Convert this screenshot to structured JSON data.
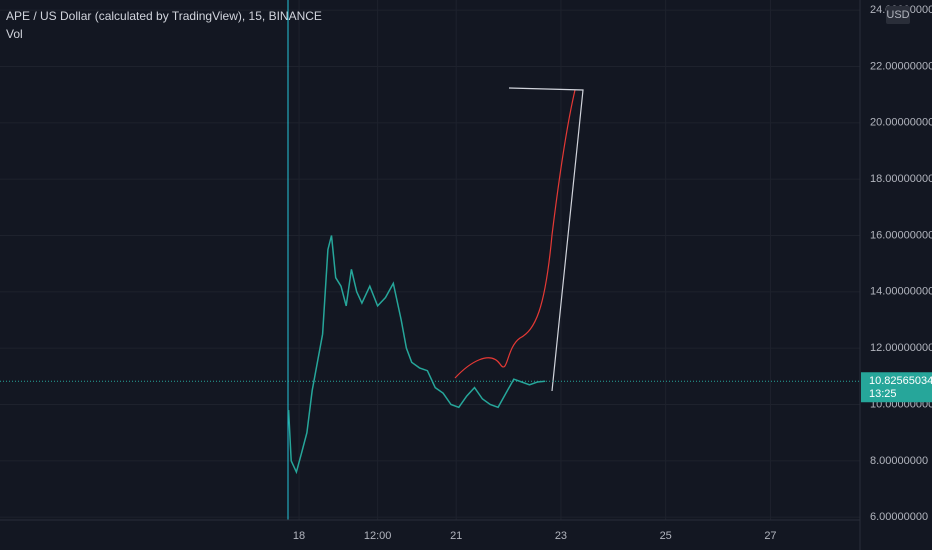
{
  "chart_data": {
    "type": "line",
    "title": "APE / US Dollar (calculated by TradingView), 15, BINANCE",
    "volume_label": "Vol",
    "currency": "USD",
    "x": [
      17.8,
      17.85,
      17.95,
      18.05,
      18.15,
      18.25,
      18.35,
      18.45,
      18.55,
      18.62,
      18.7,
      18.8,
      18.9,
      19.0,
      19.1,
      19.2,
      19.35,
      19.5,
      19.65,
      19.8,
      19.95,
      20.05,
      20.15,
      20.3,
      20.45,
      20.6,
      20.75,
      20.9,
      21.05,
      21.2,
      21.35,
      21.5,
      21.65,
      21.8,
      21.95,
      22.1,
      22.25,
      22.4,
      22.55,
      22.7
    ],
    "series": [
      {
        "name": "APE / US Dollar",
        "color": "#26a69a",
        "values": [
          9.8,
          8.0,
          7.6,
          8.3,
          9.0,
          10.5,
          11.5,
          12.5,
          15.5,
          16.0,
          14.5,
          14.2,
          13.5,
          14.8,
          14.0,
          13.6,
          14.2,
          13.5,
          13.8,
          14.3,
          13.0,
          12.0,
          11.5,
          11.3,
          11.2,
          10.6,
          10.4,
          10.0,
          9.9,
          10.3,
          10.6,
          10.2,
          10.0,
          9.9,
          10.4,
          10.9,
          10.8,
          10.7,
          10.8,
          10.82565034
        ]
      }
    ],
    "last_price": 10.82565034,
    "countdown": "13:25",
    "xlim": [
      12.29,
      28.71
    ],
    "xticks": [
      18,
      {
        "value": 19.5,
        "label": "12:00"
      },
      21,
      23,
      25,
      27
    ],
    "ylim": [
      5.9,
      24.36
    ],
    "yticks": [
      {
        "value": 6,
        "label": "6.00000000"
      },
      {
        "value": 8,
        "label": "8.00000000"
      },
      {
        "value": 10,
        "label": "10.00000000"
      },
      {
        "value": 12,
        "label": "12.00000000"
      },
      {
        "value": 14,
        "label": "14.00000000"
      },
      {
        "value": 16,
        "label": "16.00000000"
      },
      {
        "value": 18,
        "label": "18.00000000"
      },
      {
        "value": 20,
        "label": "20.00000000"
      },
      {
        "value": 22,
        "label": "22.00000000"
      },
      {
        "value": 24,
        "label": "24.00000000"
      }
    ],
    "grid": true
  }
}
